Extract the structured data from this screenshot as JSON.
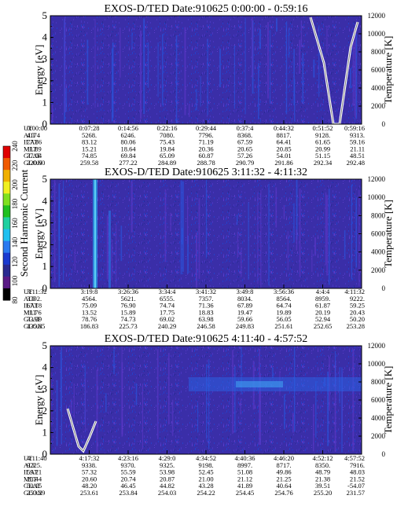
{
  "colorbar": {
    "label": "Second Harmonic Current",
    "ticks": [
      "80",
      "100",
      "120",
      "140",
      "160",
      "180",
      "200",
      "220",
      "240"
    ],
    "colors": [
      "#000000",
      "#5a1a86",
      "#2a2a90",
      "#1a3ad0",
      "#2a7af0",
      "#20c0f0",
      "#20d0a0",
      "#20c020",
      "#80e020",
      "#f0f020",
      "#f0b000",
      "#f05a00",
      "#e00000"
    ]
  },
  "chart_data": [
    {
      "type": "heatmap",
      "title": "EXOS-D/TED   Date:910625  0:00:00 - 0:59:16",
      "ylabel": "Energy [eV]",
      "ylabel_right": "Temperature [K]",
      "ylim": [
        0,
        5
      ],
      "ylim_right": [
        0,
        12000
      ],
      "yticks": [
        "0",
        "1",
        "2",
        "3",
        "4",
        "5"
      ],
      "yticks_right": [
        "0",
        "2000",
        "4000",
        "6000",
        "8000",
        "10000",
        "12000"
      ],
      "rows": [
        {
          "name": "UT",
          "values": [
            "0:00:00",
            "0:07:28",
            "0:14:56",
            "0:22:16",
            "0:29:44",
            "0:37:4",
            "0:44:32",
            "0:51:52",
            "0:59:16"
          ]
        },
        {
          "name": "ALT",
          "values": [
            "4174",
            "5268.",
            "6246.",
            "7080.",
            "7796.",
            "8368.",
            "8817.",
            "9128.",
            "9313."
          ]
        },
        {
          "name": "ILAT",
          "values": [
            "77.86",
            "83.12",
            "80.06",
            "75.43",
            "71.19",
            "67.59",
            "64.41",
            "61.65",
            "59.16"
          ]
        },
        {
          "name": "MLT",
          "values": [
            "11.89",
            "15.21",
            "18.64",
            "19.84",
            "20.36",
            "20.65",
            "20.85",
            "20.99",
            "21.11"
          ]
        },
        {
          "name": "GLAT",
          "values": [
            "77.04",
            "74.85",
            "69.84",
            "65.09",
            "60.87",
            "57.26",
            "54.01",
            "51.15",
            "48.51"
          ]
        },
        {
          "name": "GLON",
          "values": [
            "220.00",
            "259.58",
            "277.22",
            "284.89",
            "288.78",
            "290.79",
            "291.86",
            "292.34",
            "292.48"
          ]
        }
      ]
    },
    {
      "type": "heatmap",
      "title": "EXOS-D/TED   Date:910625  3:11:32 - 4:11:32",
      "ylabel": "Energy [eV]",
      "ylabel_right": "Temperature [K]",
      "ylim": [
        0,
        5
      ],
      "ylim_right": [
        0,
        12000
      ],
      "yticks": [
        "0",
        "1",
        "2",
        "3",
        "4",
        "5"
      ],
      "yticks_right": [
        "0",
        "2000",
        "4000",
        "6000",
        "8000",
        "10000",
        "12000"
      ],
      "rows": [
        {
          "name": "UT",
          "values": [
            "3:11:32",
            "3:19:8",
            "3:26:36",
            "3:34:4",
            "3:41:32",
            "3:49:8",
            "3:56:36",
            "4:4:4",
            "4:11:32"
          ]
        },
        {
          "name": "ALT",
          "values": [
            "3392.",
            "4564.",
            "5621.",
            "6555.",
            "7357.",
            "8034.",
            "8564.",
            "8959.",
            "9222."
          ]
        },
        {
          "name": "ILAT",
          "values": [
            "67.18",
            "75.09",
            "76.90",
            "74.74",
            "71.36",
            "67.89",
            "64.74",
            "61.87",
            "59.25"
          ]
        },
        {
          "name": "MLT",
          "values": [
            "11.76",
            "13.52",
            "15.89",
            "17.75",
            "18.83",
            "19.47",
            "19.89",
            "20.19",
            "20.43"
          ]
        },
        {
          "name": "GLAT",
          "values": [
            "73.39",
            "78.76",
            "74.73",
            "69.02",
            "63.98",
            "59.66",
            "56.05",
            "52.94",
            "50.20"
          ]
        },
        {
          "name": "GLON",
          "values": [
            "135.85",
            "186.83",
            "225.73",
            "240.29",
            "246.58",
            "249.83",
            "251.61",
            "252.65",
            "253.28"
          ]
        }
      ]
    },
    {
      "type": "heatmap",
      "title": "EXOS-D/TED   Date:910625  4:11:40 - 4:57:52",
      "ylabel": "Energy [eV]",
      "ylabel_right": "Temperature [K]",
      "ylim": [
        0,
        5
      ],
      "ylim_right": [
        0,
        12000
      ],
      "yticks": [
        "0",
        "1",
        "2",
        "3",
        "4",
        "5"
      ],
      "yticks_right": [
        "0",
        "2000",
        "4000",
        "6000",
        "8000",
        "10000",
        "12000"
      ],
      "rows": [
        {
          "name": "UT",
          "values": [
            "4:11:40",
            "4:17:32",
            "4:23:16",
            "4:29:0",
            "4:34:52",
            "4:40:36",
            "4:46:20",
            "4:52:12",
            "4:57:52"
          ]
        },
        {
          "name": "ALT",
          "values": [
            "9225.",
            "9338.",
            "9370.",
            "9325.",
            "9198.",
            "8997.",
            "8717.",
            "8350.",
            "7916."
          ]
        },
        {
          "name": "ILAT",
          "values": [
            "59.21",
            "57.32",
            "55.59",
            "53.98",
            "52.45",
            "51.08",
            "49.86",
            "48.79",
            "48.03"
          ]
        },
        {
          "name": "MLT",
          "values": [
            "20.44",
            "20.60",
            "20.74",
            "20.87",
            "21.00",
            "21.12",
            "21.25",
            "21.38",
            "21.52"
          ]
        },
        {
          "name": "GLAT",
          "values": [
            "50.15",
            "48.20",
            "46.45",
            "44.82",
            "43.28",
            "41.89",
            "40.64",
            "39.51",
            "-54.07"
          ]
        },
        {
          "name": "GLON",
          "values": [
            "253.29",
            "253.61",
            "253.84",
            "254.03",
            "254.22",
            "254.45",
            "254.76",
            "255.20",
            "231.57"
          ]
        }
      ]
    }
  ]
}
